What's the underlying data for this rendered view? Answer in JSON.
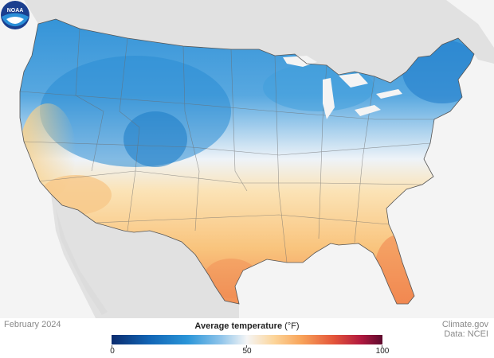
{
  "map": {
    "date": "February 2024",
    "legend": {
      "title": "Average temperature",
      "unit": "(°F)",
      "ticks": [
        "0",
        "50",
        "100"
      ],
      "range": [
        0,
        100
      ]
    },
    "credit": {
      "line1": "Climate.gov",
      "line2": "Data: NCEI"
    },
    "logo_text": "NOAA",
    "colors": {
      "cold_deep": "#0b2c6e",
      "cold": "#2a95d8",
      "neutral": "#f5f5f5",
      "warm": "#f8a45a",
      "hot": "#e4553a",
      "hot_deep": "#5e0a2e"
    }
  }
}
